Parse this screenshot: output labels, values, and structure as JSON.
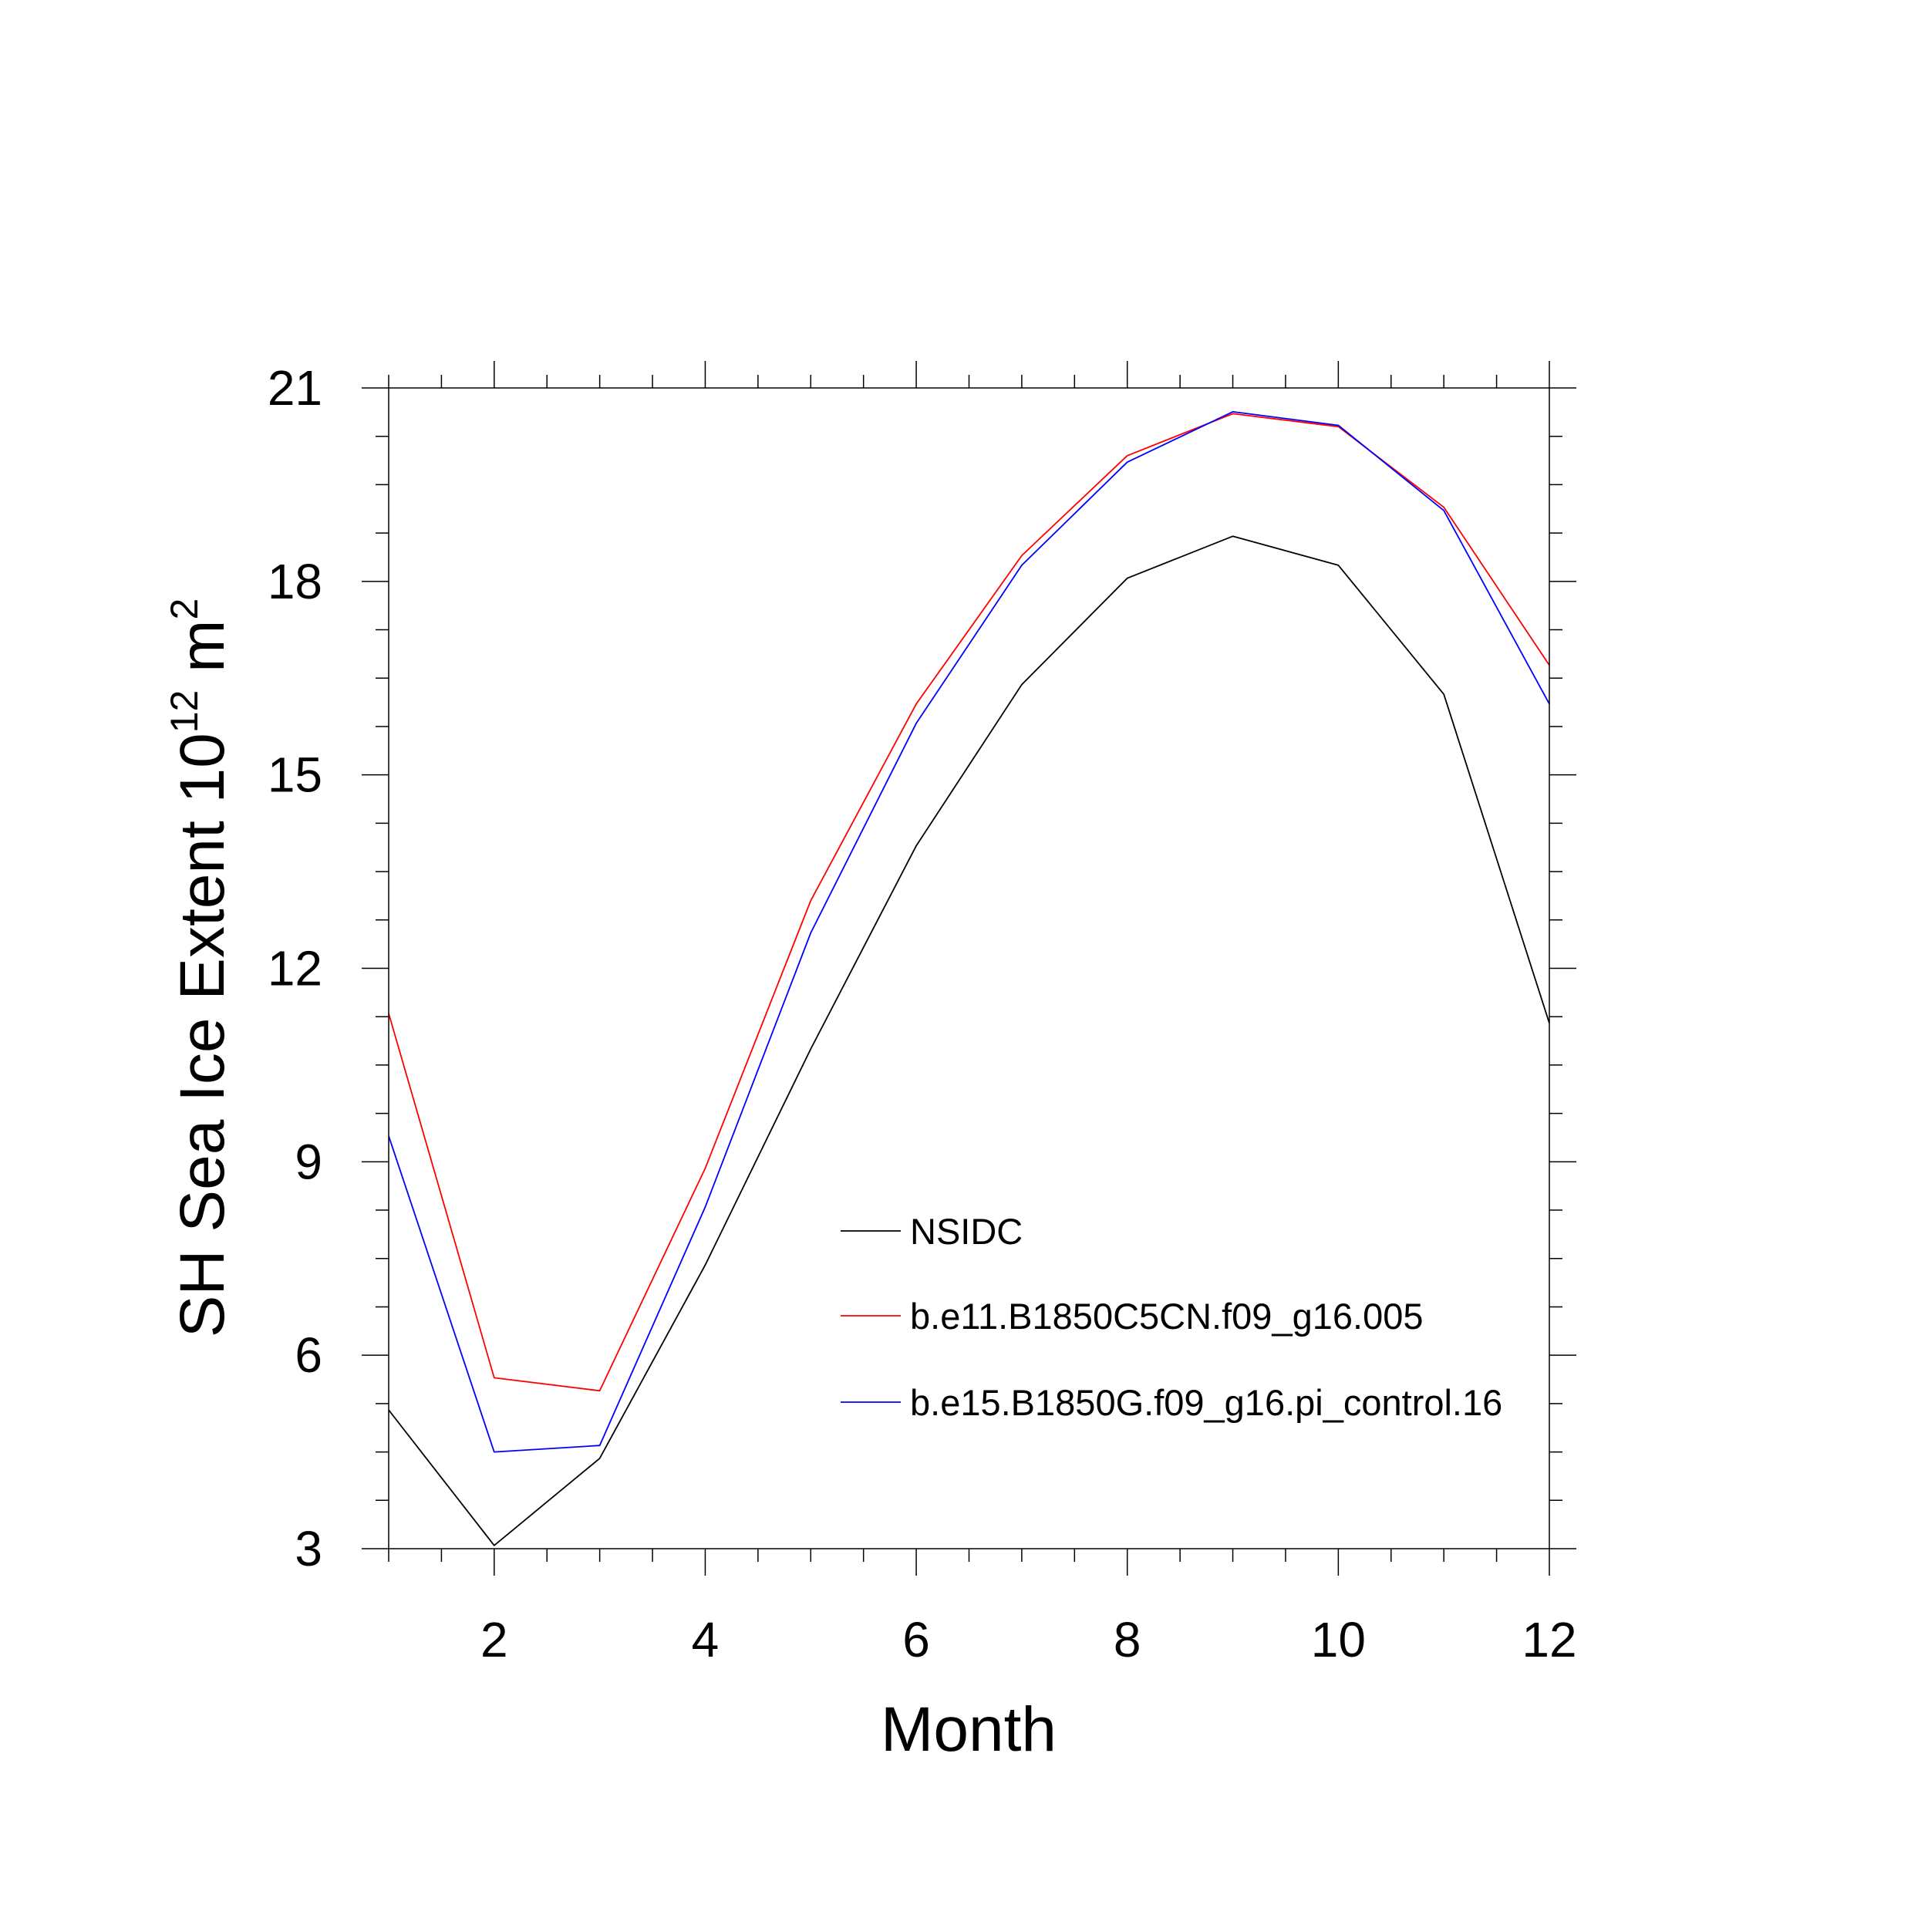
{
  "chart_data": {
    "type": "line",
    "title": "",
    "xlabel": "Month",
    "ylabel": {
      "prefix": "SH Sea Ice Extent 10",
      "exponent": "12",
      "unit": " m",
      "unit_exponent": "2"
    },
    "xlim": [
      1,
      12
    ],
    "ylim": [
      3,
      21
    ],
    "x_ticks": [
      2,
      4,
      6,
      8,
      10,
      12
    ],
    "y_ticks": [
      3,
      6,
      9,
      12,
      15,
      18,
      21
    ],
    "x": [
      1,
      2,
      3,
      4,
      5,
      6,
      7,
      8,
      9,
      10,
      11,
      12
    ],
    "grid": false,
    "legend_position": "lower-right inside",
    "series": [
      {
        "name": "NSIDC",
        "color": "#000000",
        "values": [
          5.15,
          3.05,
          4.4,
          7.4,
          10.75,
          13.9,
          16.4,
          18.05,
          18.7,
          18.25,
          16.25,
          11.15
        ]
      },
      {
        "name": "b.e11.B1850C5CN.f09_g16.005",
        "color": "#ff0000",
        "values": [
          11.3,
          5.65,
          5.45,
          8.9,
          13.05,
          16.1,
          18.4,
          19.95,
          20.6,
          20.4,
          19.15,
          16.7
        ]
      },
      {
        "name": "b.e15.B1850G.f09_g16.pi_control.16",
        "color": "#0000ff",
        "values": [
          9.4,
          4.5,
          4.6,
          8.3,
          12.55,
          15.8,
          18.25,
          19.85,
          20.63,
          20.42,
          19.1,
          16.1
        ]
      }
    ]
  }
}
